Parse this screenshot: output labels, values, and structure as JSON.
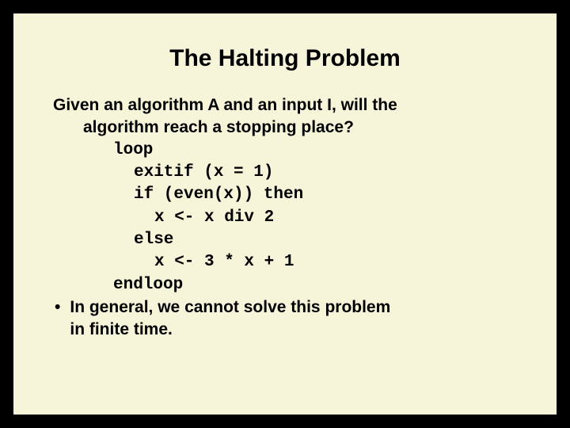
{
  "slide": {
    "title": "The Halting Problem",
    "background_color": "#f7f5d9",
    "border_color": "#000000",
    "title_fontsize": 30,
    "body_fontsize": 21,
    "title_font": "Arial",
    "code_font": "Courier New",
    "intro": {
      "line1": "Given an algorithm A and an input I, will the",
      "line2": "algorithm reach a stopping place?"
    },
    "code": {
      "l1": "loop",
      "l2": "exitif (x = 1)",
      "l3": "if (even(x)) then",
      "l4": "x <- x div 2",
      "l5": "else",
      "l6": "x <- 3 * x + 1",
      "l7": "endloop"
    },
    "bullet": {
      "marker": "•",
      "line1": "In general, we cannot solve this problem",
      "line2": "in finite time."
    }
  }
}
